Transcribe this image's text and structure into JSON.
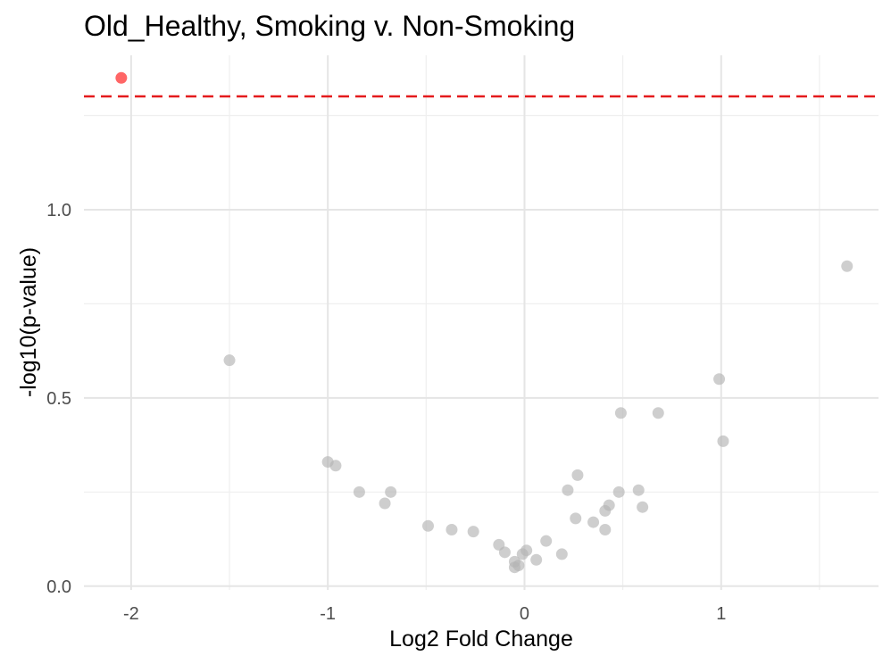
{
  "chart_data": {
    "type": "scatter",
    "title": "Old_Healthy, Smoking v. Non-Smoking",
    "xlabel": "Log2 Fold Change",
    "ylabel": "-log10(p-value)",
    "xlim": [
      -2.24,
      1.8
    ],
    "ylim": [
      -0.01,
      1.41
    ],
    "x_ticks": [
      -2,
      -1,
      0,
      1
    ],
    "x_tick_labels": [
      "-2",
      "-1",
      "0",
      "1"
    ],
    "y_ticks": [
      0.0,
      0.5,
      1.0
    ],
    "y_tick_labels": [
      "0.0",
      "0.5",
      "1.0"
    ],
    "threshold": 1.301,
    "grid": true,
    "legend": "none",
    "colors": {
      "significant": "#ff3333",
      "not_significant": "#b3b3b3",
      "threshold_line": "#e41a1c"
    },
    "points": [
      {
        "x": -2.05,
        "y": 1.35,
        "significant": true
      },
      {
        "x": -1.5,
        "y": 0.6,
        "significant": false
      },
      {
        "x": -1.0,
        "y": 0.33,
        "significant": false
      },
      {
        "x": -0.96,
        "y": 0.32,
        "significant": false
      },
      {
        "x": -0.84,
        "y": 0.25,
        "significant": false
      },
      {
        "x": -0.71,
        "y": 0.22,
        "significant": false
      },
      {
        "x": -0.68,
        "y": 0.25,
        "significant": false
      },
      {
        "x": -0.49,
        "y": 0.16,
        "significant": false
      },
      {
        "x": -0.37,
        "y": 0.15,
        "significant": false
      },
      {
        "x": -0.26,
        "y": 0.145,
        "significant": false
      },
      {
        "x": -0.13,
        "y": 0.11,
        "significant": false
      },
      {
        "x": -0.1,
        "y": 0.09,
        "significant": false
      },
      {
        "x": -0.05,
        "y": 0.065,
        "significant": false
      },
      {
        "x": -0.05,
        "y": 0.05,
        "significant": false
      },
      {
        "x": -0.03,
        "y": 0.055,
        "significant": false
      },
      {
        "x": -0.01,
        "y": 0.085,
        "significant": false
      },
      {
        "x": 0.01,
        "y": 0.095,
        "significant": false
      },
      {
        "x": 0.06,
        "y": 0.07,
        "significant": false
      },
      {
        "x": 0.11,
        "y": 0.12,
        "significant": false
      },
      {
        "x": 0.19,
        "y": 0.085,
        "significant": false
      },
      {
        "x": 0.22,
        "y": 0.255,
        "significant": false
      },
      {
        "x": 0.26,
        "y": 0.18,
        "significant": false
      },
      {
        "x": 0.27,
        "y": 0.295,
        "significant": false
      },
      {
        "x": 0.35,
        "y": 0.17,
        "significant": false
      },
      {
        "x": 0.41,
        "y": 0.15,
        "significant": false
      },
      {
        "x": 0.41,
        "y": 0.2,
        "significant": false
      },
      {
        "x": 0.43,
        "y": 0.215,
        "significant": false
      },
      {
        "x": 0.48,
        "y": 0.25,
        "significant": false
      },
      {
        "x": 0.49,
        "y": 0.46,
        "significant": false
      },
      {
        "x": 0.58,
        "y": 0.255,
        "significant": false
      },
      {
        "x": 0.6,
        "y": 0.21,
        "significant": false
      },
      {
        "x": 0.68,
        "y": 0.46,
        "significant": false
      },
      {
        "x": 0.99,
        "y": 0.55,
        "significant": false
      },
      {
        "x": 1.01,
        "y": 0.385,
        "significant": false
      },
      {
        "x": 1.64,
        "y": 0.85,
        "significant": false
      }
    ]
  }
}
